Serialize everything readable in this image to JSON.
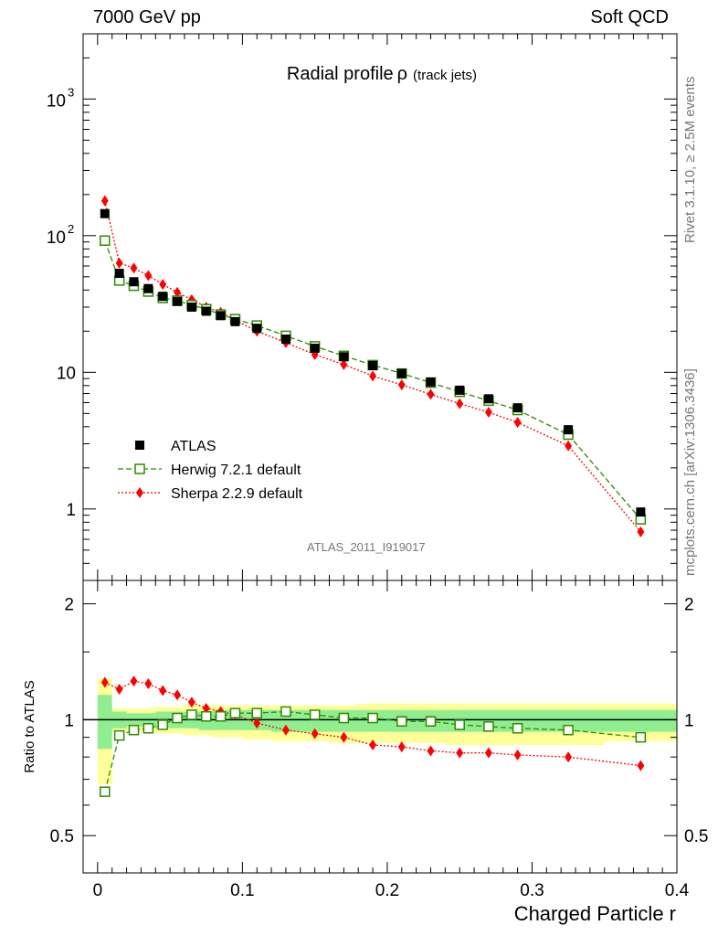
{
  "header": {
    "left": "7000 GeV pp",
    "right": "Soft QCD"
  },
  "side_labels": {
    "rivet": "Rivet 3.1.10, ≥ 2.5M events",
    "mcplots": "mcplots.cern.ch [arXiv:1306.3436]"
  },
  "analysis_tag": "ATLAS_2011_I919017",
  "colors": {
    "data": "#000000",
    "herwig": "#2e8b00",
    "sherpa": "#ff0000",
    "band_inner": "#90ee90",
    "band_outer": "#ffff99"
  },
  "chart_data": [
    {
      "type": "scatter",
      "panel": "main",
      "title": "Radial profile",
      "title_symbol": "ρ",
      "title_suffix": "(track jets)",
      "yscale": "log",
      "ylim": [
        0.3,
        3000
      ],
      "xlim": [
        -0.01,
        0.4
      ],
      "ytick_labels": {
        "major": [
          "1",
          "10",
          "10",
          "10"
        ],
        "exponents": [
          "",
          "",
          "2",
          "3"
        ]
      },
      "legend": {
        "placement": "middle-left",
        "entries": [
          "ATLAS",
          "Herwig 7.2.1 default",
          "Sherpa 2.2.9 default"
        ]
      },
      "x": [
        0.005,
        0.015,
        0.025,
        0.035,
        0.045,
        0.055,
        0.065,
        0.075,
        0.085,
        0.095,
        0.11,
        0.13,
        0.15,
        0.17,
        0.19,
        0.21,
        0.23,
        0.25,
        0.27,
        0.29,
        0.325,
        0.375
      ],
      "series": [
        {
          "name": "ATLAS",
          "style": "square-filled",
          "values": [
            145,
            53,
            46,
            41,
            36,
            33,
            30,
            28,
            26,
            23.5,
            21,
            17.5,
            15,
            13,
            11.2,
            9.8,
            8.5,
            7.4,
            6.4,
            5.5,
            3.8,
            0.95
          ]
        },
        {
          "name": "Herwig 7.2.1 default",
          "style": "square-open-dashed",
          "values": [
            92,
            47,
            43,
            39,
            35,
            33.5,
            31,
            29,
            26.5,
            24.5,
            22,
            18.5,
            15.5,
            13.2,
            11.3,
            9.8,
            8.4,
            7.2,
            6.2,
            5.3,
            3.5,
            0.84
          ]
        },
        {
          "name": "Sherpa 2.2.9 default",
          "style": "diamond-filled-dotted",
          "values": [
            180,
            63,
            58,
            51,
            44,
            38.5,
            34,
            30,
            27.5,
            24,
            20,
            16.5,
            13.5,
            11.4,
            9.4,
            8.1,
            6.9,
            5.9,
            5.1,
            4.3,
            2.9,
            0.68
          ]
        }
      ]
    },
    {
      "type": "scatter",
      "panel": "ratio",
      "ylabel": "Ratio to ATLAS",
      "xlabel": "Charged Particle r",
      "yscale": "log",
      "ylim": [
        0.4,
        2.3
      ],
      "xlim": [
        -0.01,
        0.4
      ],
      "ytick_labels": [
        "0.5",
        "1",
        "2"
      ],
      "ytick_values": [
        0.5,
        1,
        2
      ],
      "xtick_labels": [
        "0",
        "0.1",
        "0.2",
        "0.3",
        "0.4"
      ],
      "xtick_values": [
        0,
        0.1,
        0.2,
        0.3,
        0.4
      ],
      "bin_edges": [
        0,
        0.01,
        0.02,
        0.03,
        0.04,
        0.05,
        0.06,
        0.07,
        0.08,
        0.09,
        0.1,
        0.12,
        0.14,
        0.16,
        0.18,
        0.2,
        0.22,
        0.24,
        0.26,
        0.28,
        0.3,
        0.35,
        0.4
      ],
      "band_inner": {
        "lo": [
          0.84,
          0.95,
          0.96,
          0.96,
          0.95,
          0.95,
          0.95,
          0.94,
          0.94,
          0.94,
          0.94,
          0.93,
          0.93,
          0.93,
          0.93,
          0.93,
          0.93,
          0.93,
          0.93,
          0.93,
          0.93,
          0.93
        ],
        "hi": [
          1.16,
          1.05,
          1.04,
          1.04,
          1.05,
          1.05,
          1.05,
          1.05,
          1.06,
          1.06,
          1.06,
          1.06,
          1.06,
          1.06,
          1.06,
          1.06,
          1.06,
          1.06,
          1.06,
          1.06,
          1.06,
          1.06
        ]
      },
      "band_outer": {
        "lo": [
          0.68,
          0.93,
          0.93,
          0.93,
          0.92,
          0.92,
          0.91,
          0.91,
          0.9,
          0.9,
          0.89,
          0.88,
          0.88,
          0.87,
          0.87,
          0.87,
          0.87,
          0.86,
          0.86,
          0.86,
          0.86,
          0.88
        ],
        "hi": [
          1.28,
          1.07,
          1.07,
          1.07,
          1.08,
          1.08,
          1.09,
          1.09,
          1.09,
          1.09,
          1.09,
          1.09,
          1.09,
          1.09,
          1.1,
          1.1,
          1.1,
          1.1,
          1.1,
          1.1,
          1.1,
          1.1
        ]
      },
      "x": [
        0.005,
        0.015,
        0.025,
        0.035,
        0.045,
        0.055,
        0.065,
        0.075,
        0.085,
        0.095,
        0.11,
        0.13,
        0.15,
        0.17,
        0.19,
        0.21,
        0.23,
        0.25,
        0.27,
        0.29,
        0.325,
        0.375
      ],
      "series": [
        {
          "name": "Herwig 7.2.1 default",
          "style": "square-open-dashed",
          "values": [
            0.65,
            0.91,
            0.94,
            0.95,
            0.97,
            1.01,
            1.03,
            1.02,
            1.02,
            1.04,
            1.04,
            1.05,
            1.03,
            1.01,
            1.01,
            0.99,
            0.99,
            0.97,
            0.96,
            0.95,
            0.94,
            0.9
          ]
        },
        {
          "name": "Sherpa 2.2.9 default",
          "style": "diamond-filled-dotted",
          "values": [
            1.25,
            1.2,
            1.26,
            1.24,
            1.19,
            1.16,
            1.11,
            1.07,
            1.05,
            1.03,
            0.98,
            0.94,
            0.92,
            0.9,
            0.86,
            0.85,
            0.83,
            0.82,
            0.82,
            0.81,
            0.8,
            0.76
          ]
        }
      ]
    }
  ]
}
